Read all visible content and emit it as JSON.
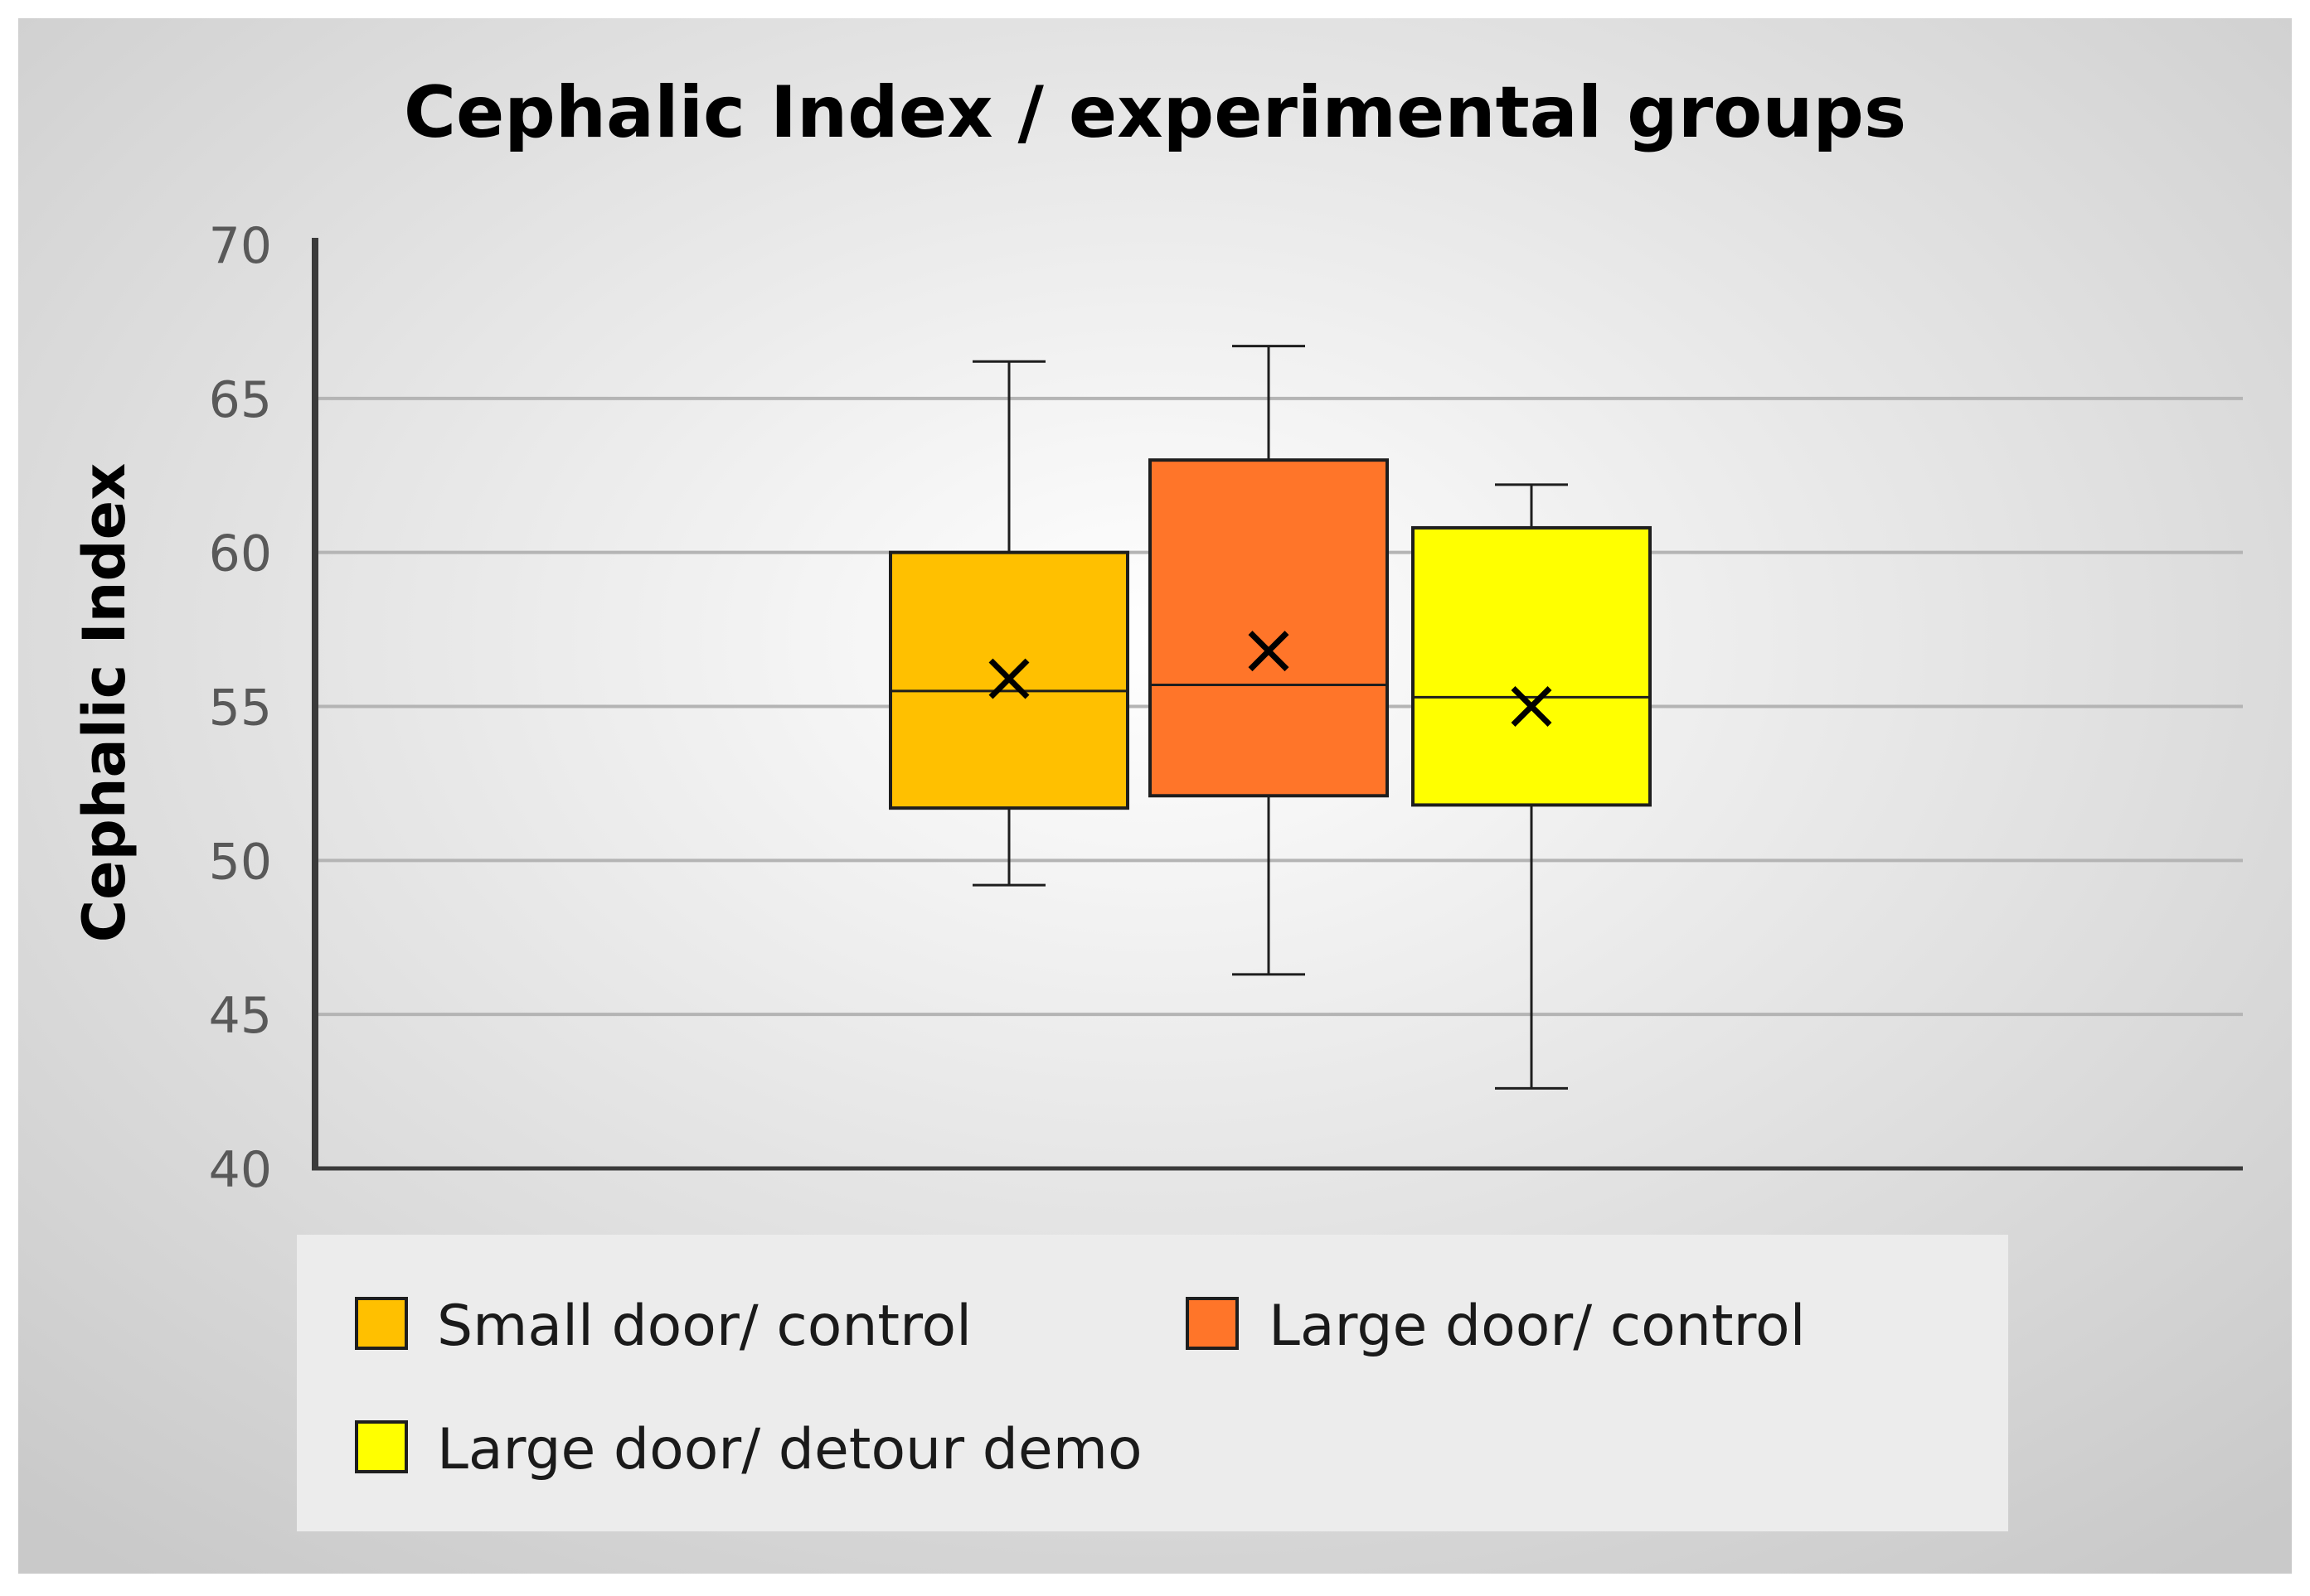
{
  "colors": {
    "background_center": "#ffffff",
    "background_edge": "#c9c9c9",
    "axis": "#3a3a3a",
    "grid": "#b4b4b4",
    "tick_text": "#595959",
    "title_text": "#000000",
    "legend_bg": "#ececec",
    "box_border": "#1e1e1e"
  },
  "chart_data": {
    "type": "boxplot",
    "title": "Cephalic Index / experimental groups",
    "xlabel": "",
    "ylabel": "Cephalic Index",
    "ylim": [
      40,
      70
    ],
    "yticks": [
      40,
      45,
      50,
      55,
      60,
      65,
      70
    ],
    "grid": true,
    "legend_position": "bottom",
    "series": [
      {
        "name": "Small door/ control",
        "color": "#FFC000",
        "min": 49.2,
        "q1": 51.7,
        "median": 55.5,
        "q3": 60.0,
        "max": 66.2,
        "mean": 55.9
      },
      {
        "name": "Large door/ control",
        "color": "#FF7529",
        "min": 46.3,
        "q1": 52.1,
        "median": 55.7,
        "q3": 63.0,
        "max": 66.7,
        "mean": 56.8
      },
      {
        "name": "Large door/ detour demo",
        "color": "#FFFF00",
        "min": 42.6,
        "q1": 51.8,
        "median": 55.3,
        "q3": 60.8,
        "max": 62.2,
        "mean": 55.0
      }
    ]
  }
}
